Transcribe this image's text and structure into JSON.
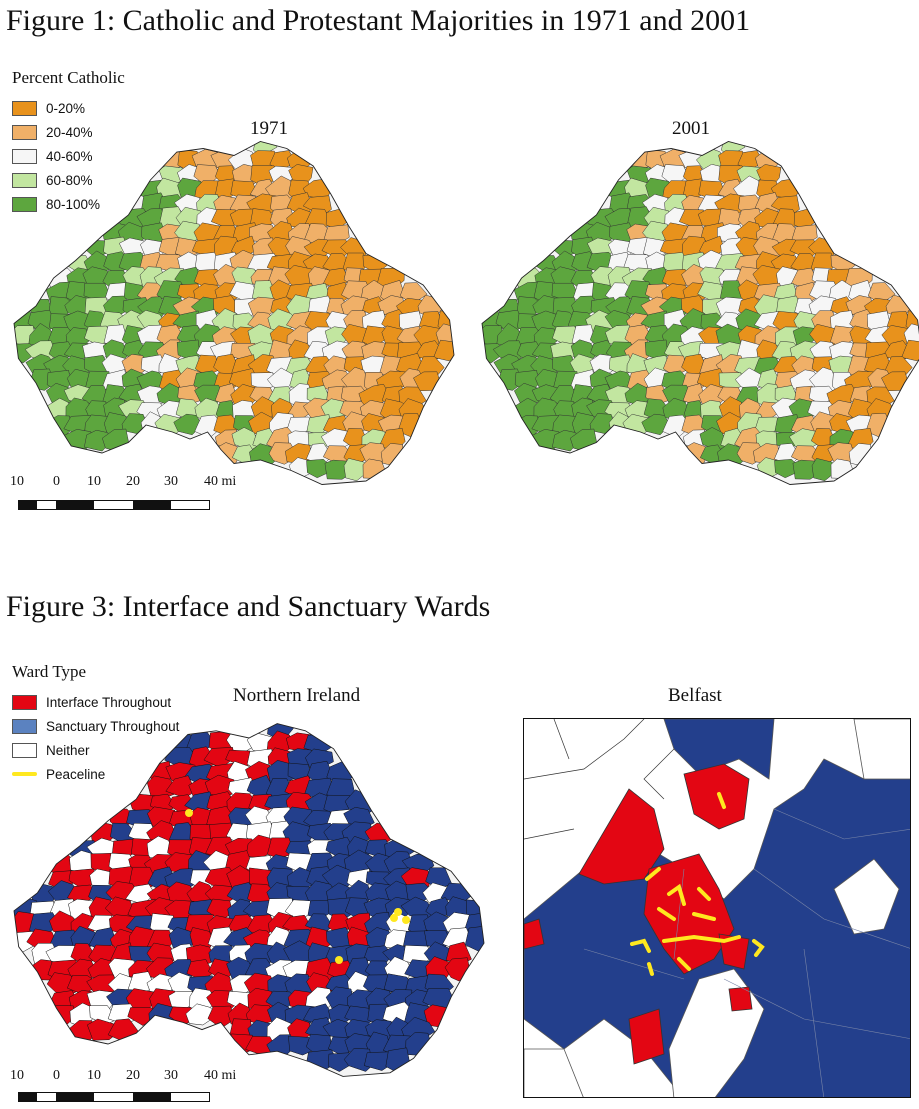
{
  "figure1": {
    "title": "Figure 1: Catholic and Protestant Majorities in 1971 and 2001",
    "legend": {
      "title": "Percent Catholic",
      "items": [
        {
          "label": "0-20%",
          "color": "#e8921c"
        },
        {
          "label": "20-40%",
          "color": "#f0b068"
        },
        {
          "label": "40-60%",
          "color": "#f6f6f6"
        },
        {
          "label": "60-80%",
          "color": "#c2e6a0"
        },
        {
          "label": "80-100%",
          "color": "#5da63e"
        }
      ]
    },
    "maps": [
      {
        "label": "1971"
      },
      {
        "label": "2001"
      }
    ]
  },
  "figure3": {
    "title": "Figure 3: Interface and Sanctuary Wards",
    "legend": {
      "title": "Ward Type",
      "items": [
        {
          "label": "Interface Throughout",
          "color": "#e30613"
        },
        {
          "label": "Sanctuary Throughout",
          "color": "#5b82c0"
        },
        {
          "label": "Neither",
          "color": "#ffffff"
        },
        {
          "label": "Peaceline",
          "color": "#ffe81f"
        }
      ]
    },
    "maps": [
      {
        "label": "Northern Ireland",
        "fill_color": "#233f8c"
      },
      {
        "label": "Belfast",
        "fill_color": "#233f8c"
      }
    ]
  },
  "scale_bar": {
    "ticks": [
      "10",
      "0",
      "10",
      "20",
      "30",
      "40 mi"
    ]
  }
}
